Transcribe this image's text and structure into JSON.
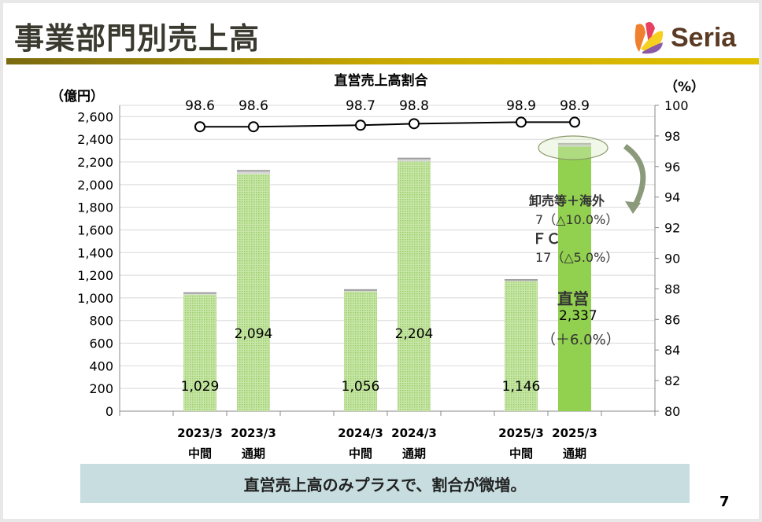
{
  "header": {
    "title": "事業部門別売上高",
    "logo": "Seria"
  },
  "note": "直営売上高のみプラスで、割合が微増。",
  "page_number": "7",
  "annotations": {
    "wholesale_label": "卸売等＋海外",
    "wholesale_value": "7（△10.0%）",
    "fc_label": "ＦＣ",
    "fc_value": "17（△5.0%）",
    "direct_label": "直営",
    "direct_value": "2,337",
    "direct_change": "（＋6.0%）"
  },
  "chart_data": {
    "type": "bar",
    "title": "直営売上高割合",
    "ylabel": "（億円）",
    "y2label": "（%）",
    "ylim": [
      0,
      2700
    ],
    "y2lim": [
      80,
      100
    ],
    "yticks": [
      "0",
      "200",
      "400",
      "600",
      "800",
      "1,000",
      "1,200",
      "1,400",
      "1,600",
      "1,800",
      "2,000",
      "2,200",
      "2,400",
      "2,600"
    ],
    "y2ticks": [
      "80",
      "82",
      "84",
      "86",
      "88",
      "90",
      "92",
      "94",
      "96",
      "98",
      "100"
    ],
    "categories": [
      [
        "2023/3",
        "中間"
      ],
      [
        "2023/3",
        "通期"
      ],
      [
        "2024/3",
        "中間"
      ],
      [
        "2024/3",
        "通期"
      ],
      [
        "2025/3",
        "中間"
      ],
      [
        "2025/3",
        "通期"
      ]
    ],
    "slots": [
      1,
      2,
      4,
      5,
      7,
      8
    ],
    "direct": [
      1029,
      2094,
      1056,
      2204,
      1146,
      2337
    ],
    "direct_labels": [
      "1,029",
      "2,094",
      "1,056",
      "2,204",
      "1,146",
      ""
    ],
    "other": [
      14,
      28,
      14,
      27,
      13,
      24
    ],
    "ratio": [
      98.6,
      98.6,
      98.7,
      98.8,
      98.9,
      98.9
    ],
    "ratio_labels": [
      "98.6",
      "98.6",
      "98.7",
      "98.8",
      "98.9",
      "98.9"
    ],
    "colors": {
      "bar": "#b5dc8a",
      "bar_highlight": "#92d050",
      "other": "#a0a0a0",
      "line": "#000000"
    }
  }
}
